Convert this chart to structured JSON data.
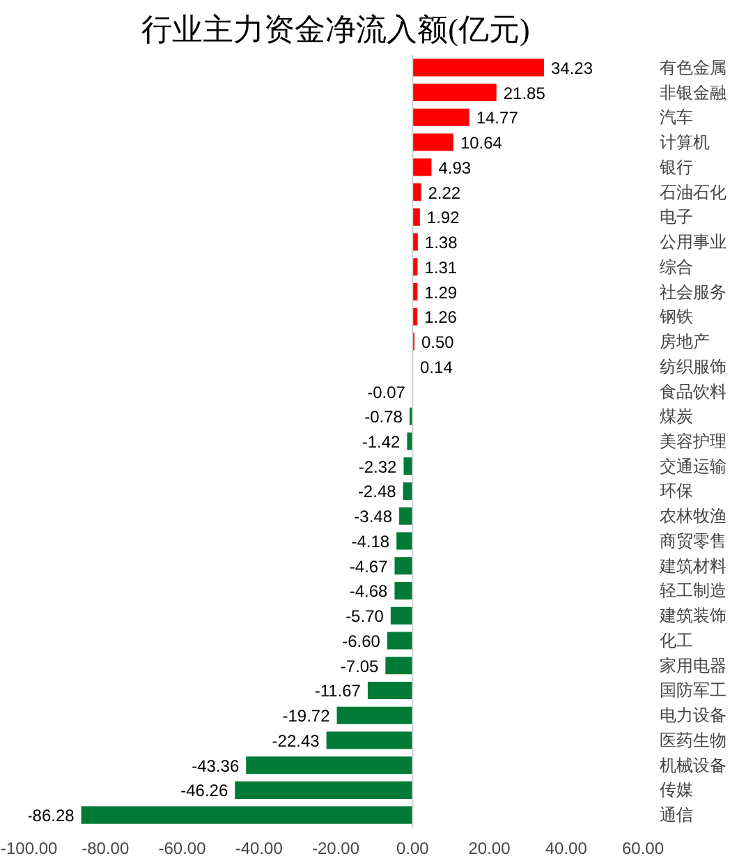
{
  "chart_data": {
    "type": "bar",
    "orientation": "horizontal",
    "title": "行业主力资金净流入额(亿元)",
    "categories": [
      "有色金属",
      "非银金融",
      "汽车",
      "计算机",
      "银行",
      "石油石化",
      "电子",
      "公用事业",
      "综合",
      "社会服务",
      "钢铁",
      "房地产",
      "纺织服饰",
      "食品饮料",
      "煤炭",
      "美容护理",
      "交通运输",
      "环保",
      "农林牧渔",
      "商贸零售",
      "建筑材料",
      "轻工制造",
      "建筑装饰",
      "化工",
      "家用电器",
      "国防军工",
      "电力设备",
      "医药生物",
      "机械设备",
      "传媒",
      "通信"
    ],
    "values": [
      34.23,
      21.85,
      14.77,
      10.64,
      4.93,
      2.22,
      1.92,
      1.38,
      1.31,
      1.29,
      1.26,
      0.5,
      0.14,
      -0.07,
      -0.78,
      -1.42,
      -2.32,
      -2.48,
      -3.48,
      -4.18,
      -4.67,
      -4.68,
      -5.7,
      -6.6,
      -7.05,
      -11.67,
      -19.72,
      -22.43,
      -43.36,
      -46.26,
      -86.28
    ],
    "value_labels": [
      "34.23",
      "21.85",
      "14.77",
      "10.64",
      "4.93",
      "2.22",
      "1.92",
      "1.38",
      "1.31",
      "1.29",
      "1.26",
      "0.50",
      "0.14",
      "-0.07",
      "-0.78",
      "-1.42",
      "-2.32",
      "-2.48",
      "-3.48",
      "-4.18",
      "-4.67",
      "-4.68",
      "-5.70",
      "-6.60",
      "-7.05",
      "-11.67",
      "-19.72",
      "-22.43",
      "-43.36",
      "-46.26",
      "-86.28"
    ],
    "colors": [
      "#ff0000",
      "#ff0000",
      "#ff0000",
      "#ff0000",
      "#ff0000",
      "#ff0000",
      "#ff0000",
      "#ff0000",
      "#ff0000",
      "#ff0000",
      "#ff0000",
      "#ff0000",
      "#ff0000",
      "#007a37",
      "#007a37",
      "#007a37",
      "#007a37",
      "#007a37",
      "#007a37",
      "#007a37",
      "#007a37",
      "#007a37",
      "#007a37",
      "#007a37",
      "#007a37",
      "#007a37",
      "#007a37",
      "#007a37",
      "#007a37",
      "#007a37",
      "#007a37"
    ],
    "xlim": [
      -100,
      60
    ],
    "xticks": [
      {
        "value": -100,
        "label": "-100.00"
      },
      {
        "value": -80,
        "label": "-80.00"
      },
      {
        "value": -60,
        "label": "-60.00"
      },
      {
        "value": -40,
        "label": "-40.00"
      },
      {
        "value": -20,
        "label": "-20.00"
      },
      {
        "value": 0,
        "label": "0.00"
      },
      {
        "value": 20,
        "label": "20.00"
      },
      {
        "value": 40,
        "label": "40.00"
      },
      {
        "value": 60,
        "label": "60.00"
      }
    ],
    "ref_lines": [
      {
        "axis": "x",
        "value": 0,
        "color": "#d0d0d0"
      }
    ],
    "grid": false
  }
}
